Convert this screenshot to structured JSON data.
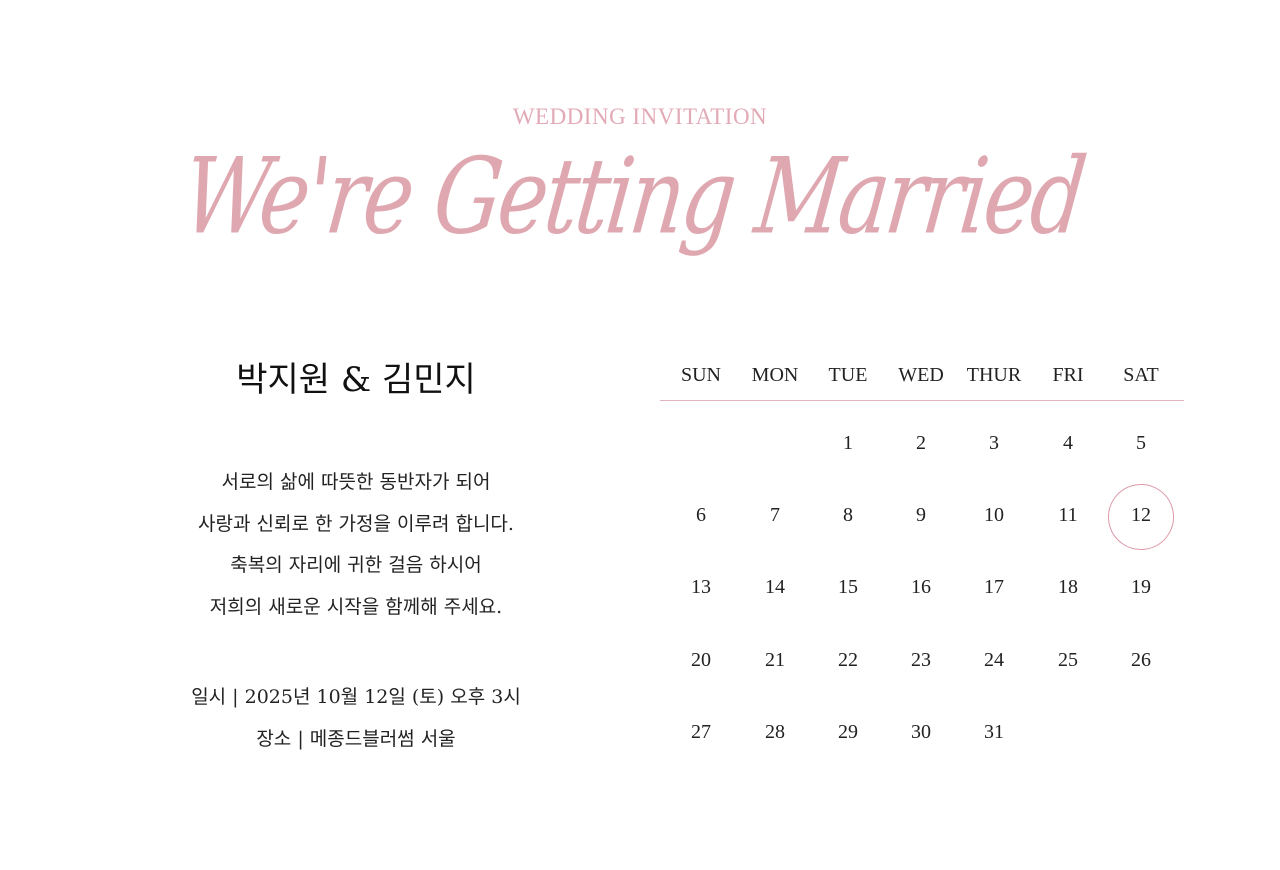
{
  "header": {
    "subtitle": "WEDDING INVITATION",
    "script_title": "We're Getting Married"
  },
  "couple": {
    "names": "박지원 & 김민지"
  },
  "message": [
    "서로의 삶에 따뜻한 동반자가 되어",
    "사랑과 신뢰로 한 가정을 이루려 합니다.",
    "축복의 자리에 귀한 걸음 하시어",
    "저희의 새로운 시작을 함께해 주세요."
  ],
  "details": {
    "date": "일시 | 2025년 10월 12일 (토) 오후 3시",
    "venue": "장소 | 메종드블러썸 서울"
  },
  "calendar": {
    "weekdays": [
      "SUN",
      "MON",
      "TUE",
      "WED",
      "THUR",
      "FRI",
      "SAT"
    ],
    "weeks": [
      [
        "",
        "",
        "1",
        "2",
        "3",
        "4",
        "5"
      ],
      [
        "6",
        "7",
        "8",
        "9",
        "10",
        "11",
        "12"
      ],
      [
        "13",
        "14",
        "15",
        "16",
        "17",
        "18",
        "19"
      ],
      [
        "20",
        "21",
        "22",
        "23",
        "24",
        "25",
        "26"
      ],
      [
        "27",
        "28",
        "29",
        "30",
        "31",
        "",
        ""
      ]
    ],
    "highlighted_day": "12"
  },
  "colors": {
    "accent": "#dfa8b0",
    "text": "#222222"
  }
}
